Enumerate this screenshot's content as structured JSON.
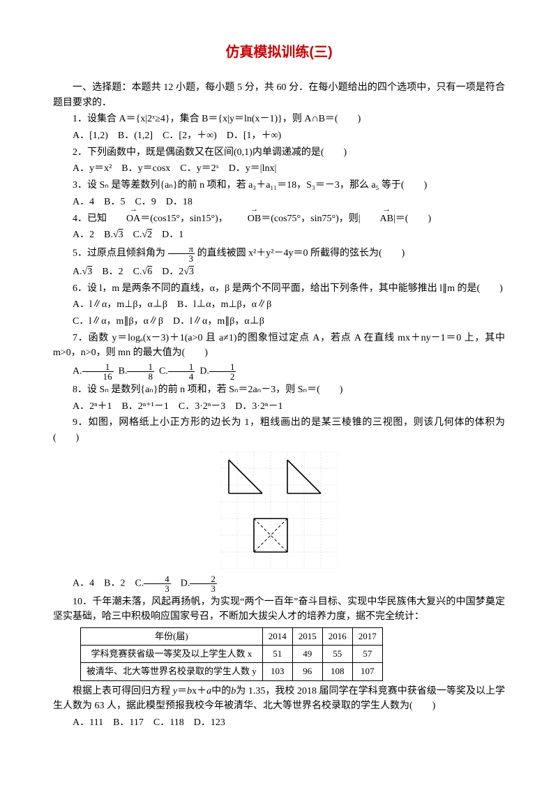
{
  "title": "仿真模拟训练(三)",
  "intro": "一、选择题：本题共 12 小题，每小题 5 分，共 60 分．在每小题给出的四个选项中，只有一项是符合题目要求的．",
  "q1": {
    "text": "1．设集合 A＝{x|2ˣ≥4}，集合 B＝{x|y＝ln(x－1)}，则 A∩B＝(　　)",
    "opts": "A．[1,2) B．(1,2] C．[2，＋∞) D．[1，＋∞)"
  },
  "q2": {
    "text": "2．下列函数中，既是偶函数又在区间(0,1)内单调递减的是(　　)",
    "opts": "A．y＝x² B．y＝cosx C．y＝2ˣ D．y＝|lnx|"
  },
  "q3": {
    "text": "3．设 Sₙ 是等差数列{aₙ}的前 n 项和，若 a₃＋a₁₁＝18，S₃＝－3，那么 a₅ 等于(　　)",
    "opts": "A．4 B．5 C．9 D．18"
  },
  "q4": {
    "text_a": "4．已知",
    "text_b": "＝(cos15°，sin15°)，",
    "text_c": "＝(cos75°，sin75°)，则|",
    "text_d": "|＝(　　)",
    "opts_a": "A．2 B.",
    "opts_b": " C.",
    "opts_c": " D．1",
    "sqrt3": "3",
    "sqrt2": "2"
  },
  "q5": {
    "text_a": "5．过原点且倾斜角为",
    "text_b": "的直线被圆 x²＋y²－4y＝0 所截得的弦长为(　　)",
    "frac_n": "π",
    "frac_d": "3",
    "opts_a": "A.",
    "opts_b": " B．2 C.",
    "opts_c": " D．2",
    "sqrt3": "3",
    "sqrt6": "6"
  },
  "q6": {
    "text": "6．设 l，m 是两条不同的直线，α，β 是两个不同平面，给出下列条件，其中能够推出 l∥m 的是(　　)",
    "opts1": "A．l∥α，m⊥β，α⊥β B．l⊥α，m⊥β，α∥β",
    "opts2": "C．l∥α，m∥β，α∥β D．l∥α，m∥β，α⊥β"
  },
  "q7": {
    "text": "7．函数 y＝logₐ(x－3)＋1(a>0 且 a≠1)的图象恒过定点 A，若点 A 在直线 mx＋ny－1＝0 上，其中 m>0，n>0，则 mn 的最大值为(　　)",
    "oA": "A.",
    "fAn": "1",
    "fAd": "16",
    "oB": "B.",
    "fBn": "1",
    "fBd": "8",
    "oC": "C.",
    "fCn": "1",
    "fCd": "4",
    "oD": "D.",
    "fDn": "1",
    "fDd": "2"
  },
  "q8": {
    "text": "8．设 Sₙ 是数列{aₙ}的前 n 项和，若 Sₙ＝2aₙ－3，则 Sₙ＝(　　)",
    "opts": "A．2ⁿ＋1 B．2ⁿ⁺¹－1 C．3·2ⁿ－3 D．3·2ⁿ－1"
  },
  "q9": {
    "text": "9．如图，网格纸上小正方形的边长为 1，粗线画出的是某三棱锥的三视图，则该几何体的体积为 (　　)",
    "oA": "A．4 B．2 C.",
    "fCn": "4",
    "fCd": "3",
    "oD": " D.",
    "fDn": "2",
    "fDd": "3"
  },
  "q10": {
    "text": "10．千年潮未落，风起再扬帆，为实现“两个一百年”奋斗目标、实现中华民族伟大复兴的中国梦奠定坚实基础，哈三中积极响应国家号召，不断加大拔尖人才的培养力度，据不完全统计：",
    "table": {
      "headers": [
        "年份(届)",
        "2014",
        "2015",
        "2016",
        "2017"
      ],
      "row1": [
        "学科竞赛获省级一等奖及以上学生人数 x",
        "51",
        "49",
        "55",
        "57"
      ],
      "row2": [
        "被清华、北大等世界名校录取的学生人数 y",
        "103",
        "96",
        "108",
        "107"
      ]
    },
    "after_a": "根据上表可得回归方程",
    "after_b": "中的",
    "after_c": "为 1.35，我校 2018 届同学在学科竞赛中获省级一等奖及以上学生人数为 63 人，据此模型预报我校今年被清华、北大等世界名校录取的学生人数为(　　)",
    "regress_y": "y",
    "regress_eq": "＝",
    "regress_b": "b",
    "regress_x": "x＋",
    "regress_a": "a",
    "regress_b2": "b",
    "opts": "A．111 B．117 C．118 D．123"
  },
  "figure": {
    "grid_color": "#cccccc",
    "dash_color": "#999999",
    "line_color": "#000000",
    "cell": 24,
    "width": 168,
    "height": 168
  }
}
